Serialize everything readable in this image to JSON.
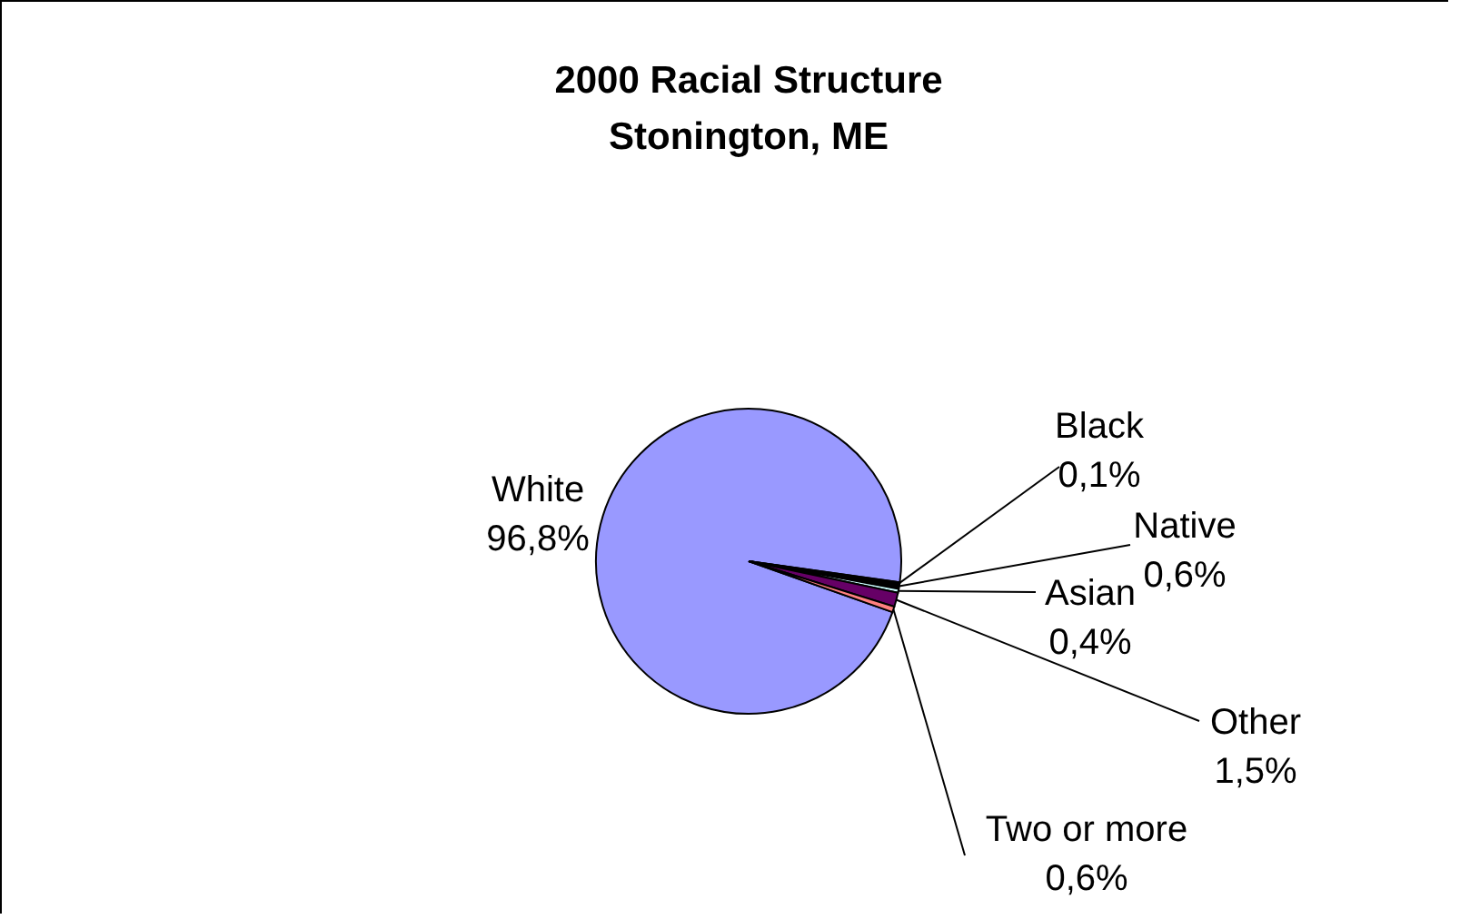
{
  "chart_data": {
    "type": "pie",
    "title": "2000 Racial Structure",
    "subtitle": "Stonington, ME",
    "categories": [
      "White",
      "Black",
      "Native",
      "Asian",
      "Other",
      "Two or more"
    ],
    "values": [
      96.8,
      0.1,
      0.6,
      0.4,
      1.5,
      0.6
    ],
    "colors": [
      "#9999ff",
      "#993366",
      "#000000",
      "#ccffff",
      "#660066",
      "#ff8080"
    ],
    "value_labels": [
      "96,8%",
      "0,1%",
      "0,6%",
      "0,4%",
      "1,5%",
      "0,6%"
    ]
  }
}
